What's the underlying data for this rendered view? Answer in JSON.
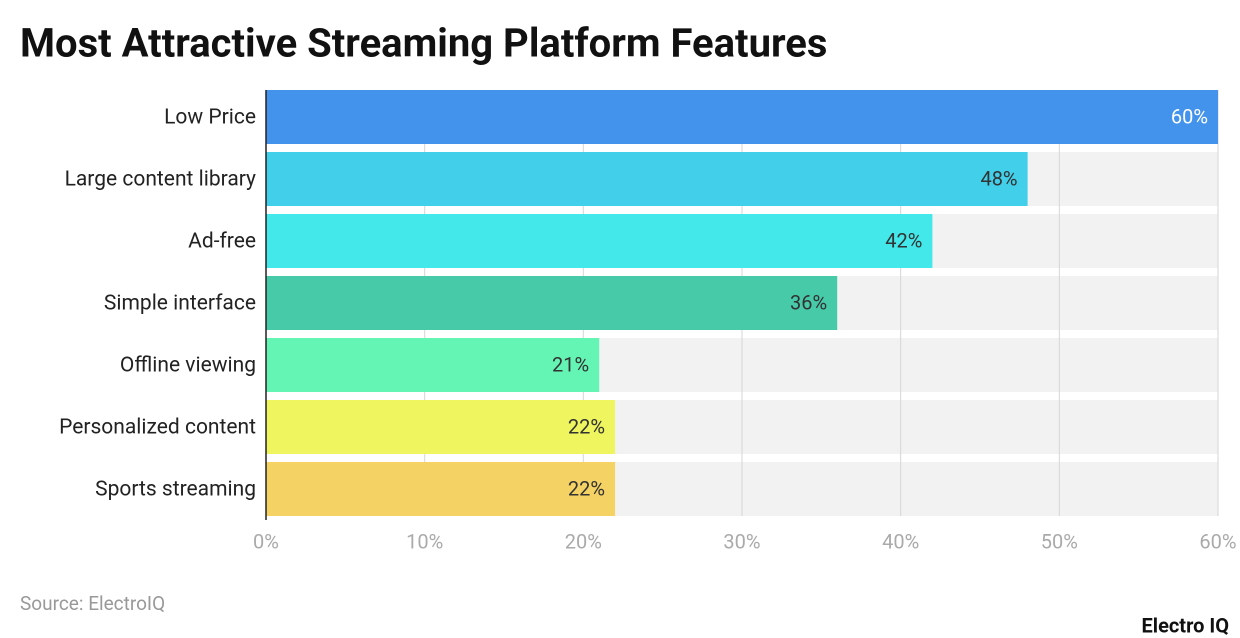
{
  "chart_data": {
    "type": "bar",
    "orientation": "horizontal",
    "title": "Most Attractive Streaming Platform Features",
    "categories": [
      "Low Price",
      "Large content library",
      "Ad-free",
      "Simple interface",
      "Offline viewing",
      "Personalized content",
      "Sports streaming"
    ],
    "values": [
      60,
      48,
      42,
      36,
      21,
      22,
      22
    ],
    "value_labels": [
      "60%",
      "48%",
      "42%",
      "36%",
      "21%",
      "22%",
      "22%"
    ],
    "colors": [
      "#4393ec",
      "#41cfea",
      "#43e9ea",
      "#47caa8",
      "#64f5b4",
      "#eef55f",
      "#f4d263"
    ],
    "label_colors": [
      "#ffffff",
      "#333333",
      "#333333",
      "#333333",
      "#333333",
      "#333333",
      "#333333"
    ],
    "xlim": [
      0,
      60
    ],
    "xticks": [
      {
        "value": 0,
        "label": "0%"
      },
      {
        "value": 10,
        "label": "10%"
      },
      {
        "value": 20,
        "label": "20%"
      },
      {
        "value": 30,
        "label": "30%"
      },
      {
        "value": 40,
        "label": "40%"
      },
      {
        "value": 50,
        "label": "50%"
      },
      {
        "value": 60,
        "label": "60%"
      }
    ],
    "grid": true,
    "source": "Source: ElectroIQ",
    "brand": "Electro IQ"
  }
}
